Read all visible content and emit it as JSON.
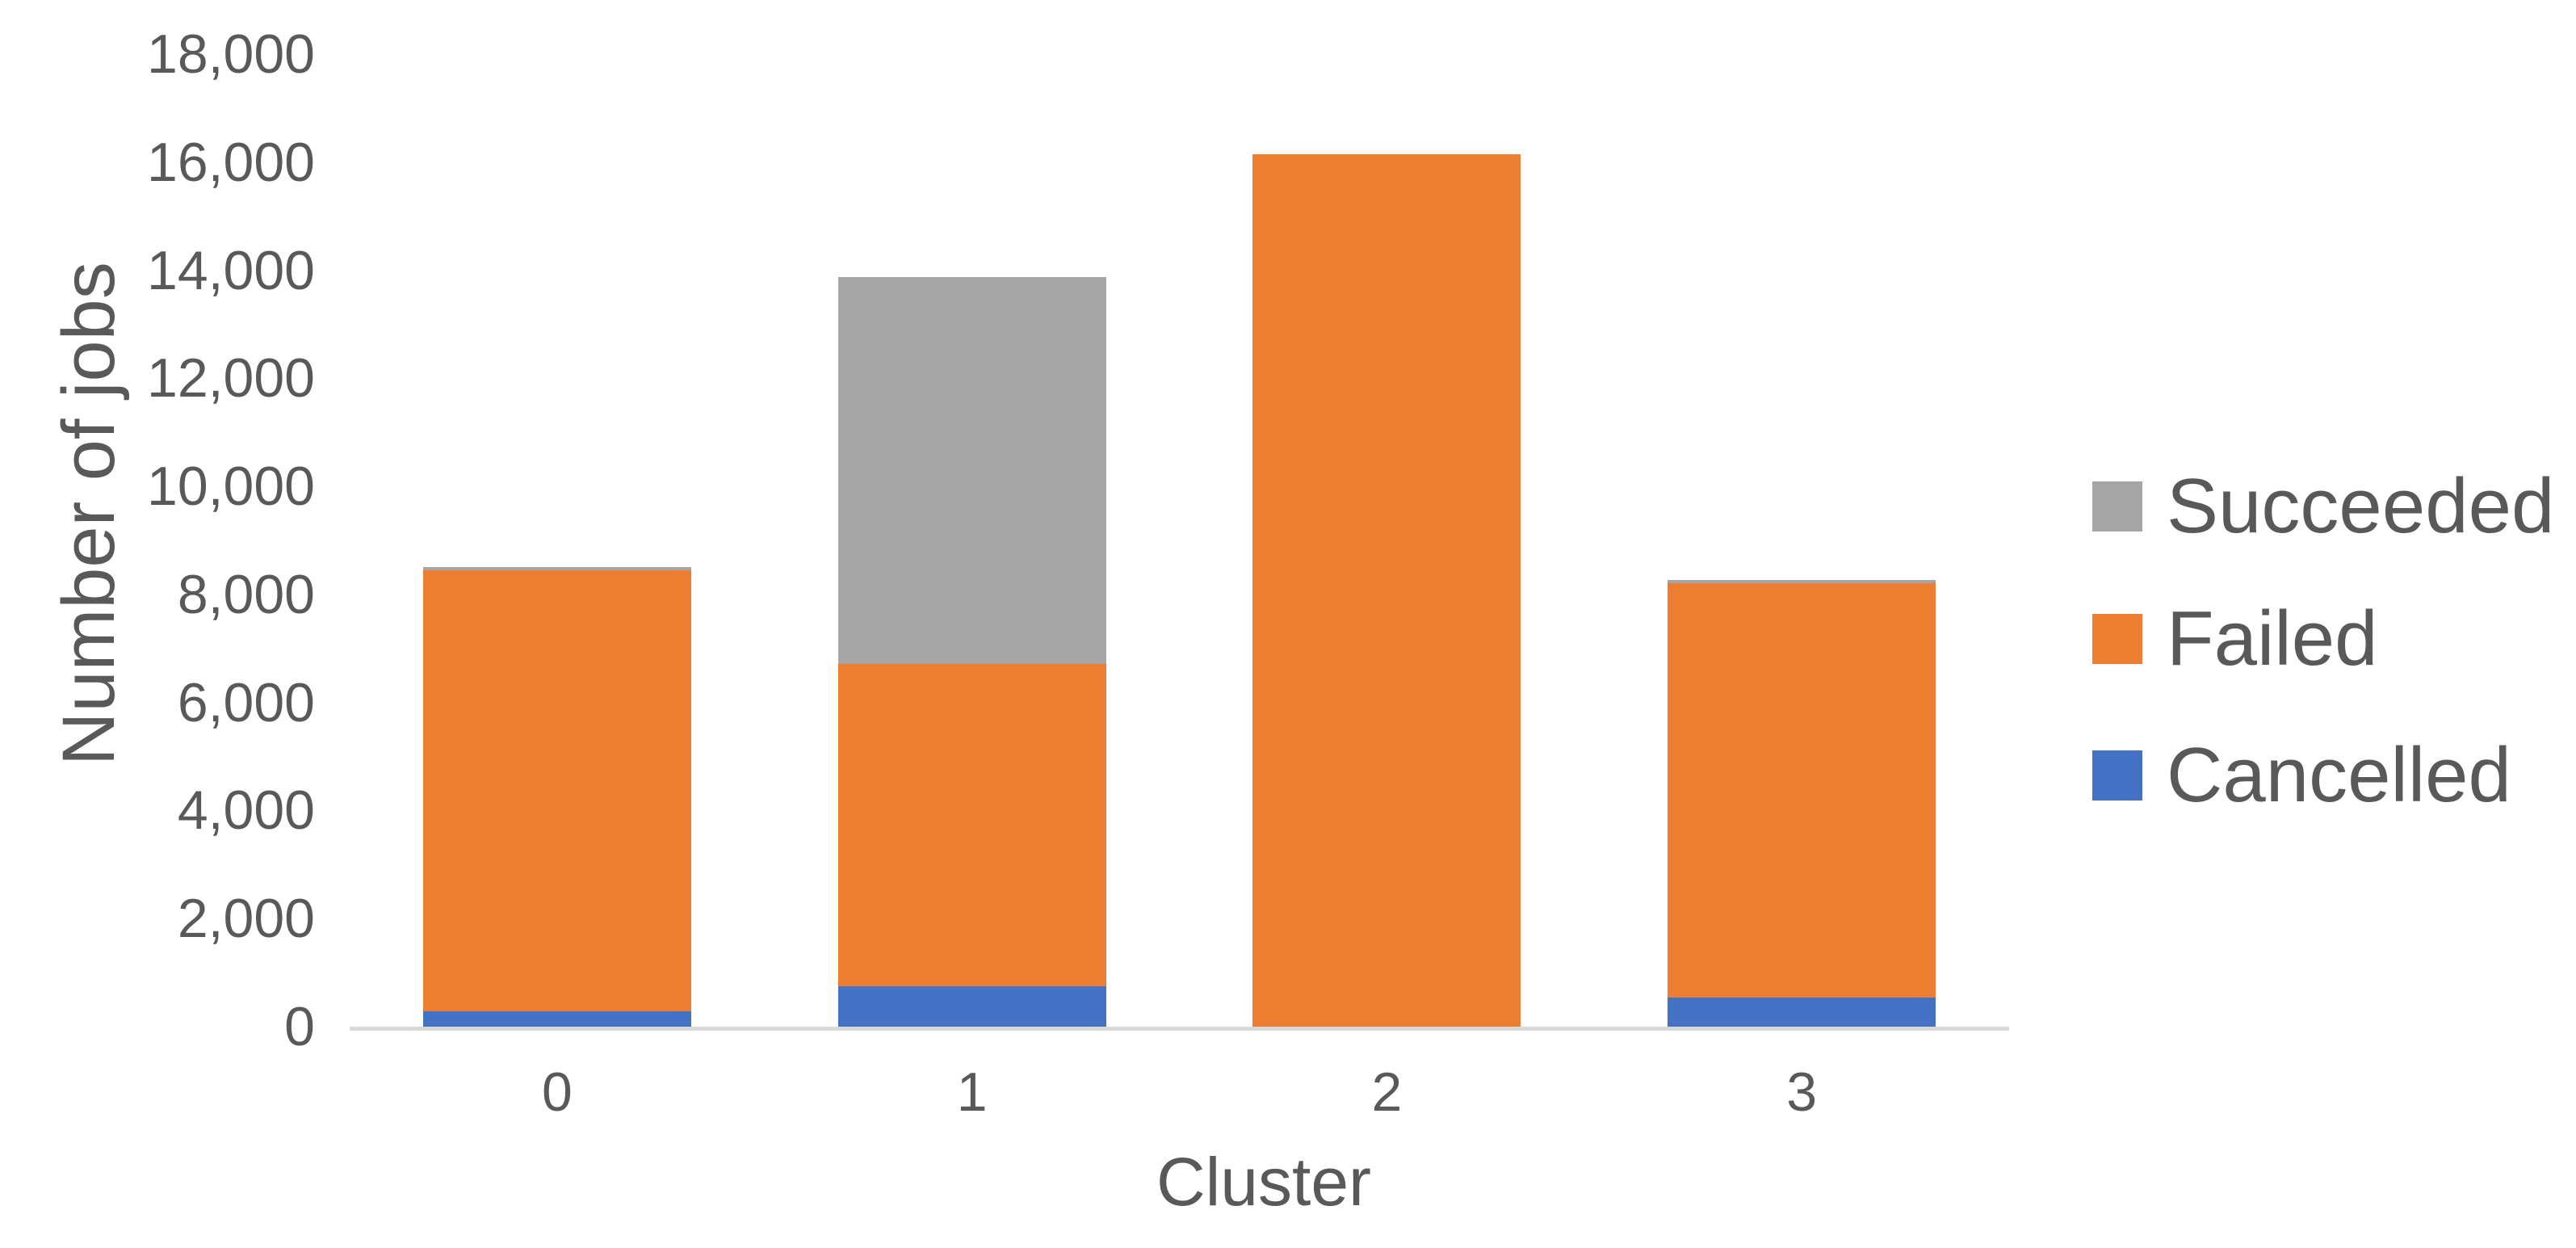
{
  "chart_data": {
    "type": "bar",
    "stacked": true,
    "xlabel": "Cluster",
    "ylabel": "Number of jobs",
    "categories": [
      "0",
      "1",
      "2",
      "3"
    ],
    "series": [
      {
        "name": "Cancelled",
        "color": "#4472C4",
        "values": [
          280,
          750,
          0,
          540
        ]
      },
      {
        "name": "Failed",
        "color": "#ED7D31",
        "values": [
          8160,
          5970,
          16150,
          7670
        ]
      },
      {
        "name": "Succeeded",
        "color": "#A5A5A5",
        "values": [
          60,
          7160,
          0,
          60
        ]
      }
    ],
    "stack_order_bottom_to_top": [
      "Cancelled",
      "Failed",
      "Succeeded"
    ],
    "ylim": [
      0,
      18000
    ],
    "ytick_step": 2000,
    "ytick_labels": [
      "0",
      "2,000",
      "4,000",
      "6,000",
      "8,000",
      "10,000",
      "12,000",
      "14,000",
      "16,000",
      "18,000"
    ],
    "grid": false,
    "legend_position": "right",
    "legend_entries": [
      {
        "label": "Succeeded",
        "color": "#A5A5A5"
      },
      {
        "label": "Failed",
        "color": "#ED7D31"
      },
      {
        "label": "Cancelled",
        "color": "#4472C4"
      }
    ]
  },
  "colors": {
    "axis_line": "#D9D9D9",
    "text": "#595959",
    "background": "#FFFFFF"
  }
}
